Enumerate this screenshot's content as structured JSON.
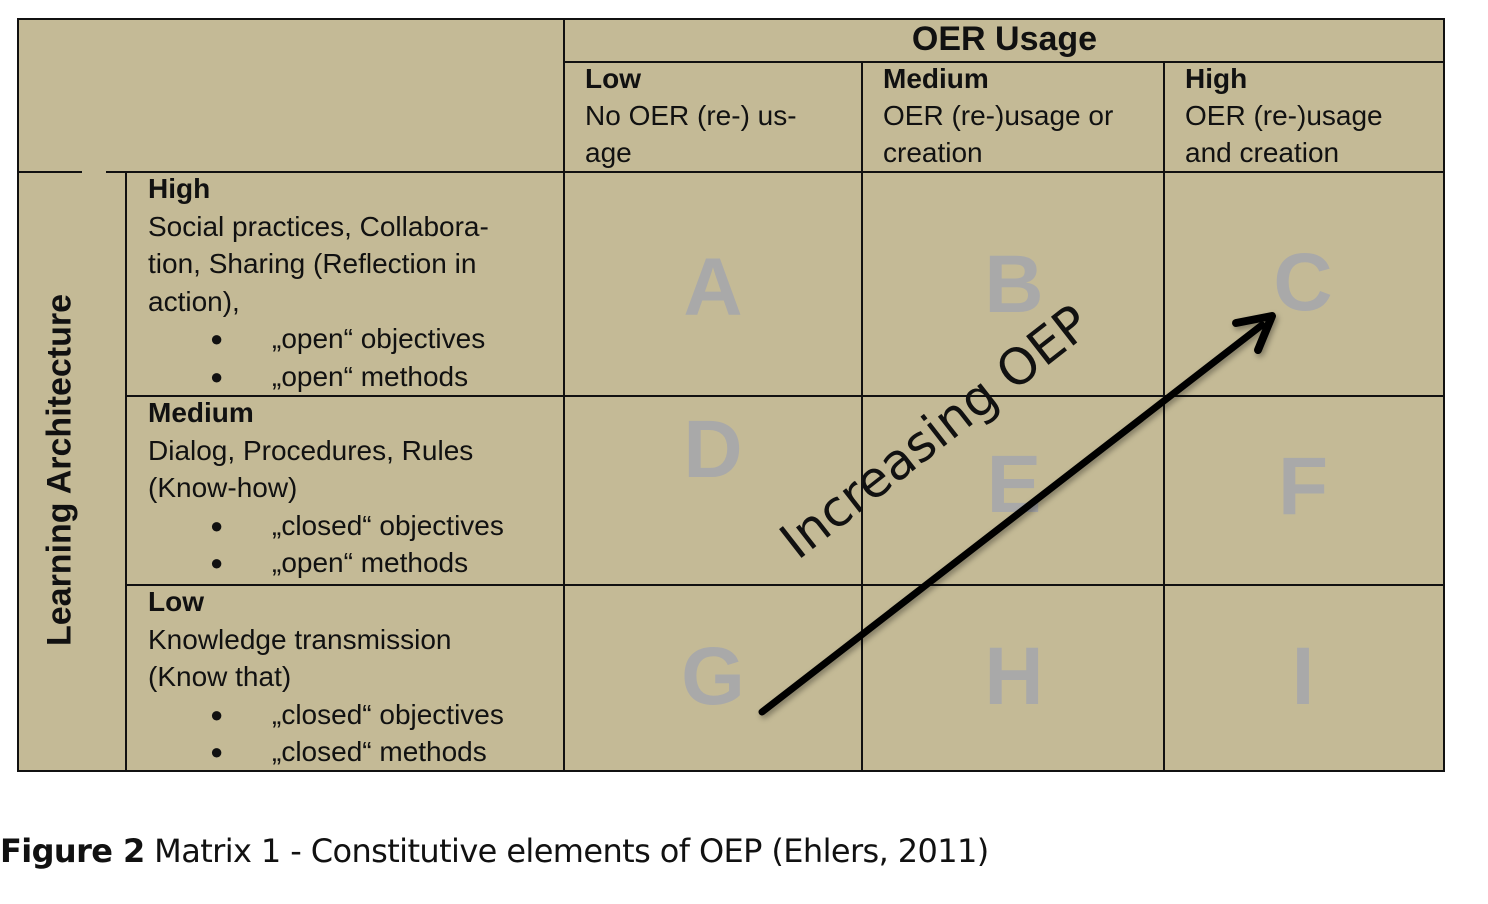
{
  "colors": {
    "cell_background": "#c4ba96",
    "grid": "#111111",
    "quadrant_letter": "#a9a9a9"
  },
  "column_group": {
    "title": "OER Usage"
  },
  "columns": [
    {
      "level": "Low",
      "lines": [
        "No OER (re-) us-",
        "age"
      ]
    },
    {
      "level": "Medium",
      "lines": [
        "OER (re-)usage or",
        "creation"
      ]
    },
    {
      "level": "High",
      "lines": [
        "OER (re-)usage",
        "and creation"
      ]
    }
  ],
  "row_group": {
    "title": "Learning Architecture"
  },
  "rows": [
    {
      "level": "High",
      "lines": [
        "Social practices, Collabora-",
        "tion, Sharing (Reflection in",
        "action),"
      ],
      "bullets": [
        "„open“ objectives",
        "„open“ methods"
      ]
    },
    {
      "level": "Medium",
      "lines": [
        "Dialog, Procedures, Rules",
        "(Know-how)"
      ],
      "bullets": [
        "„closed“ objectives",
        "„open“ methods"
      ]
    },
    {
      "level": "Low",
      "lines": [
        "Knowledge transmission",
        "(Know that)"
      ],
      "bullets": [
        "„closed“ objectives",
        "„closed“ methods"
      ]
    }
  ],
  "cells": [
    "A",
    "B",
    "C",
    "D",
    "E",
    "F",
    "G",
    "H",
    "I"
  ],
  "arrow": {
    "label": "Increasing OEP",
    "icon": "arrow-up-right-icon"
  },
  "caption": {
    "label": "Figure 2",
    "text": " Matrix 1 - Constitutive elements of OEP (Ehlers, 2011)"
  }
}
